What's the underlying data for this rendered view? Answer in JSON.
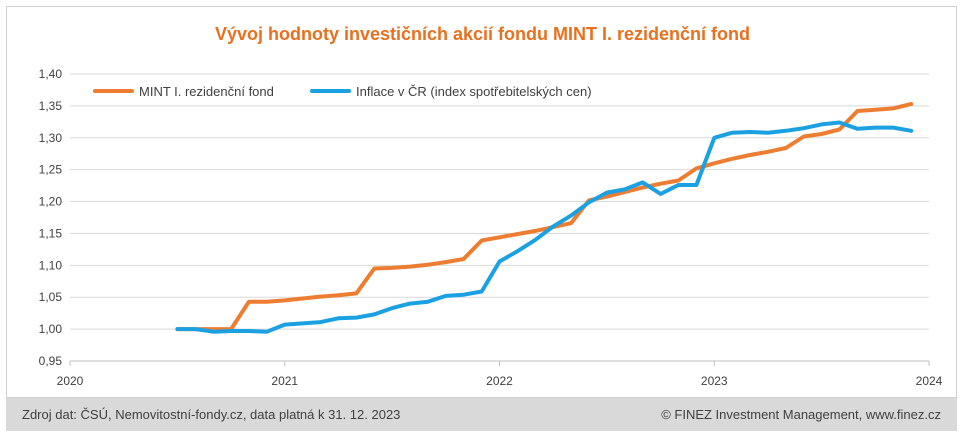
{
  "chart_data": {
    "type": "line",
    "title": "Vývoj hodnoty investičních akcií fondu MINT I. rezidenční fond",
    "xlabel": "",
    "ylabel": "",
    "xlim": [
      2020,
      2024
    ],
    "ylim": [
      0.95,
      1.4
    ],
    "x_ticks": [
      2020,
      2021,
      2022,
      2023,
      2024
    ],
    "y_ticks": [
      "0,95",
      "1,00",
      "1,05",
      "1,10",
      "1,15",
      "1,20",
      "1,25",
      "1,30",
      "1,35",
      "1,40"
    ],
    "y_tick_values": [
      0.95,
      1.0,
      1.05,
      1.1,
      1.15,
      1.2,
      1.25,
      1.3,
      1.35,
      1.4
    ],
    "grid": true,
    "legend_position": "top-left",
    "series": [
      {
        "name": "MINT I. rezidenční fond",
        "color": "#ed7d31",
        "points": [
          [
            2020.5,
            1.0
          ],
          [
            2020.583,
            1.0
          ],
          [
            2020.667,
            1.0
          ],
          [
            2020.75,
            1.0
          ],
          [
            2020.833,
            1.043
          ],
          [
            2020.917,
            1.043
          ],
          [
            2021.0,
            1.045
          ],
          [
            2021.083,
            1.048
          ],
          [
            2021.167,
            1.051
          ],
          [
            2021.25,
            1.053
          ],
          [
            2021.333,
            1.056
          ],
          [
            2021.417,
            1.095
          ],
          [
            2021.5,
            1.096
          ],
          [
            2021.583,
            1.098
          ],
          [
            2021.667,
            1.101
          ],
          [
            2021.75,
            1.105
          ],
          [
            2021.833,
            1.11
          ],
          [
            2021.917,
            1.139
          ],
          [
            2022.0,
            1.144
          ],
          [
            2022.083,
            1.149
          ],
          [
            2022.167,
            1.154
          ],
          [
            2022.25,
            1.16
          ],
          [
            2022.333,
            1.166
          ],
          [
            2022.417,
            1.202
          ],
          [
            2022.5,
            1.208
          ],
          [
            2022.583,
            1.215
          ],
          [
            2022.667,
            1.222
          ],
          [
            2022.75,
            1.228
          ],
          [
            2022.833,
            1.233
          ],
          [
            2022.917,
            1.252
          ],
          [
            2023.0,
            1.26
          ],
          [
            2023.083,
            1.267
          ],
          [
            2023.167,
            1.273
          ],
          [
            2023.25,
            1.278
          ],
          [
            2023.333,
            1.284
          ],
          [
            2023.417,
            1.302
          ],
          [
            2023.5,
            1.306
          ],
          [
            2023.583,
            1.313
          ],
          [
            2023.667,
            1.342
          ],
          [
            2023.75,
            1.344
          ],
          [
            2023.833,
            1.346
          ],
          [
            2023.917,
            1.353
          ]
        ]
      },
      {
        "name": "Inflace v ČR (index spotřebitelských cen)",
        "color": "#1ba1e2",
        "points": [
          [
            2020.5,
            1.0
          ],
          [
            2020.583,
            1.0
          ],
          [
            2020.667,
            0.996
          ],
          [
            2020.75,
            0.997
          ],
          [
            2020.833,
            0.997
          ],
          [
            2020.917,
            0.996
          ],
          [
            2021.0,
            1.007
          ],
          [
            2021.083,
            1.009
          ],
          [
            2021.167,
            1.011
          ],
          [
            2021.25,
            1.017
          ],
          [
            2021.333,
            1.018
          ],
          [
            2021.417,
            1.023
          ],
          [
            2021.5,
            1.033
          ],
          [
            2021.583,
            1.04
          ],
          [
            2021.667,
            1.043
          ],
          [
            2021.75,
            1.052
          ],
          [
            2021.833,
            1.054
          ],
          [
            2021.917,
            1.059
          ],
          [
            2022.0,
            1.106
          ],
          [
            2022.083,
            1.122
          ],
          [
            2022.167,
            1.14
          ],
          [
            2022.25,
            1.161
          ],
          [
            2022.333,
            1.178
          ],
          [
            2022.417,
            1.199
          ],
          [
            2022.5,
            1.214
          ],
          [
            2022.583,
            1.219
          ],
          [
            2022.667,
            1.23
          ],
          [
            2022.75,
            1.212
          ],
          [
            2022.833,
            1.226
          ],
          [
            2022.917,
            1.226
          ],
          [
            2023.0,
            1.3
          ],
          [
            2023.083,
            1.308
          ],
          [
            2023.167,
            1.309
          ],
          [
            2023.25,
            1.308
          ],
          [
            2023.333,
            1.311
          ],
          [
            2023.417,
            1.315
          ],
          [
            2023.5,
            1.321
          ],
          [
            2023.583,
            1.324
          ],
          [
            2023.667,
            1.314
          ],
          [
            2023.75,
            1.316
          ],
          [
            2023.833,
            1.316
          ],
          [
            2023.917,
            1.311
          ]
        ]
      }
    ]
  },
  "footer": {
    "source": "Zdroj dat: ČSÚ, Nemovitostní-fondy.cz, data platná k 31. 12. 2023",
    "copyright": "© FINEZ Investment Management, www.finez.cz"
  }
}
